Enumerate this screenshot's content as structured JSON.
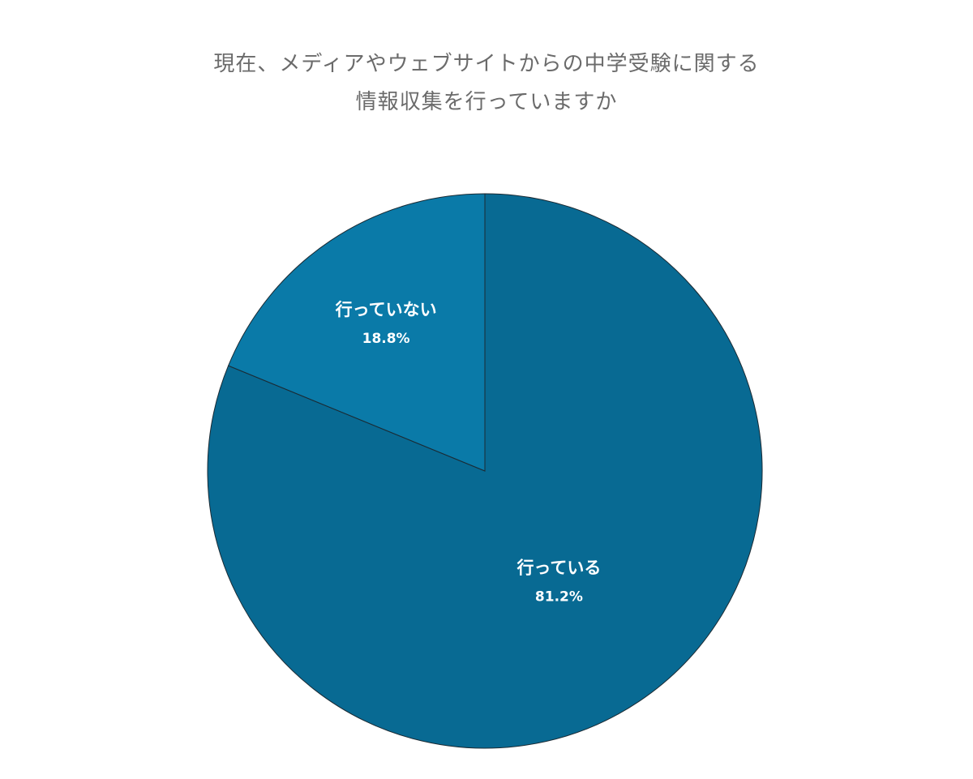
{
  "chart_data": {
    "type": "pie",
    "title_lines": [
      "現在、メディアやウェブサイトからの中学受験に関する",
      "情報収集を行っていますか"
    ],
    "slices": [
      {
        "label": "行っている",
        "value": 81.2,
        "value_label": "81.2%",
        "color": "#086a93"
      },
      {
        "label": "行っていない",
        "value": 18.8,
        "value_label": "18.8%",
        "color": "#0a7aa8"
      }
    ],
    "start_angle": "12 o'clock",
    "direction": "clockwise",
    "legend": "none",
    "grid": false
  }
}
